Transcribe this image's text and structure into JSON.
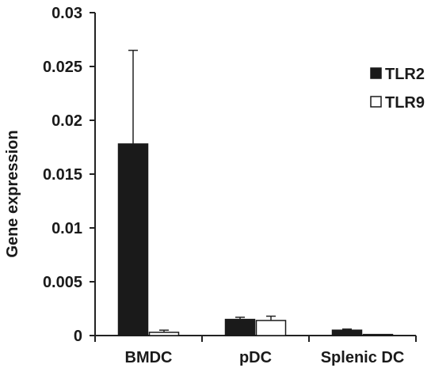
{
  "chart_data": {
    "type": "bar",
    "ylabel": "Gene expression",
    "categories": [
      "BMDC",
      "pDC",
      "Splenic DC"
    ],
    "ylim": [
      0,
      0.03
    ],
    "yticks": [
      0,
      0.005,
      0.01,
      0.015,
      0.02,
      0.025,
      0.03
    ],
    "ytick_labels": [
      "0",
      "0.005",
      "0.01",
      "0.015",
      "0.02",
      "0.025",
      "0.03"
    ],
    "legend_position": "top-right",
    "series": [
      {
        "name": "TLR2",
        "color": "#1a1a1a",
        "values": [
          0.0178,
          0.0015,
          0.0005
        ],
        "errors": [
          0.0087,
          0.0002,
          0.0001
        ]
      },
      {
        "name": "TLR9",
        "color": "#ffffff",
        "values": [
          0.0003,
          0.0014,
          0.0001
        ],
        "errors": [
          0.0002,
          0.0004,
          0.0
        ]
      }
    ],
    "grid": false
  }
}
